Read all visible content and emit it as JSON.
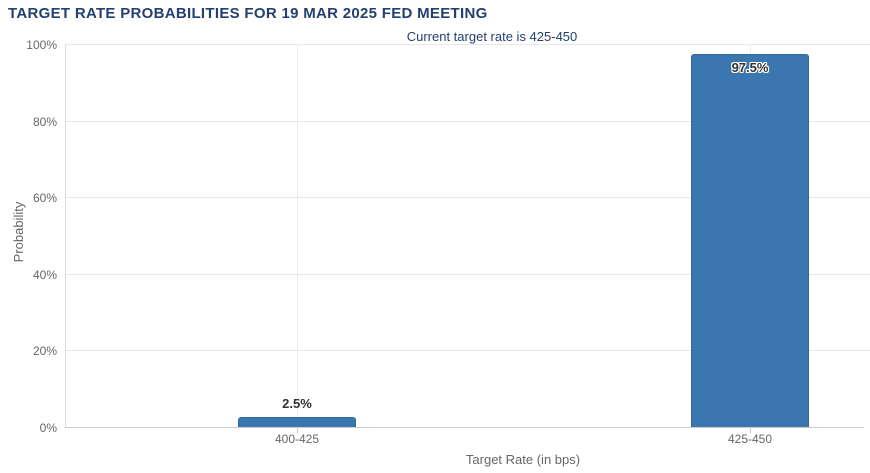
{
  "chart_data": {
    "type": "bar",
    "title": "TARGET RATE PROBABILITIES FOR 19 MAR 2025 FED MEETING",
    "subtitle": "Current target rate is 425-450",
    "xlabel": "Target Rate (in bps)",
    "ylabel": "Probability",
    "categories": [
      "400-425",
      "425-450"
    ],
    "values": [
      2.5,
      97.5
    ],
    "data_labels": [
      "2.5%",
      "97.5%"
    ],
    "ytick_values": [
      0,
      20,
      40,
      60,
      80,
      100
    ],
    "ytick_labels": [
      "0%",
      "20%",
      "40%",
      "60%",
      "80%",
      "100%"
    ],
    "ylim": [
      0,
      100
    ],
    "grid": true,
    "legend": false,
    "colors": {
      "bar": "#3c76b0",
      "bar_border": "#34689c",
      "title_text": "#25406e",
      "axis_text": "#666666",
      "gridline": "#e8e8e8",
      "axis_line": "#cccccc"
    }
  }
}
